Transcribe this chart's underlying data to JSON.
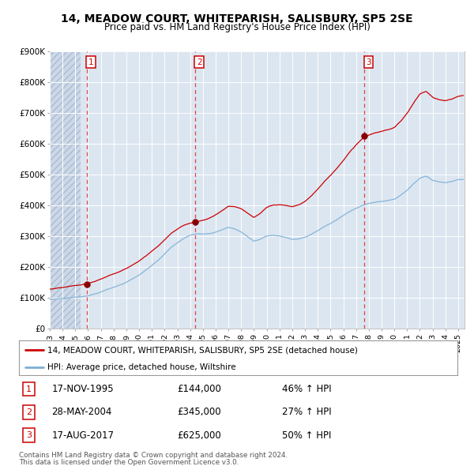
{
  "title_line1": "14, MEADOW COURT, WHITEPARISH, SALISBURY, SP5 2SE",
  "title_line2": "Price paid vs. HM Land Registry's House Price Index (HPI)",
  "background_color": "#dce6f1",
  "xlim_left": 1993.0,
  "xlim_right": 2025.5,
  "ylim_bottom": 0,
  "ylim_top": 900000,
  "yticks": [
    0,
    100000,
    200000,
    300000,
    400000,
    500000,
    600000,
    700000,
    800000,
    900000
  ],
  "ytick_labels": [
    "£0",
    "£100K",
    "£200K",
    "£300K",
    "£400K",
    "£500K",
    "£600K",
    "£700K",
    "£800K",
    "£900K"
  ],
  "xticks": [
    1993,
    1994,
    1995,
    1996,
    1997,
    1998,
    1999,
    2000,
    2001,
    2002,
    2003,
    2004,
    2005,
    2006,
    2007,
    2008,
    2009,
    2010,
    2011,
    2012,
    2013,
    2014,
    2015,
    2016,
    2017,
    2018,
    2019,
    2020,
    2021,
    2022,
    2023,
    2024,
    2025
  ],
  "red_line_color": "#cc0000",
  "blue_line_color": "#7bafd4",
  "sale_vline_color": "#dd4444",
  "sales": [
    {
      "label": "1",
      "year": 1995.88,
      "price": 144000,
      "hpi_pct": "46% ↑ HPI",
      "date_str": "17-NOV-1995"
    },
    {
      "label": "2",
      "year": 2004.37,
      "price": 345000,
      "hpi_pct": "27% ↑ HPI",
      "date_str": "28-MAY-2004"
    },
    {
      "label": "3",
      "year": 2017.62,
      "price": 625000,
      "hpi_pct": "50% ↑ HPI",
      "date_str": "17-AUG-2017"
    }
  ],
  "legend_line1": "14, MEADOW COURT, WHITEPARISH, SALISBURY, SP5 2SE (detached house)",
  "legend_line2": "HPI: Average price, detached house, Wiltshire",
  "footer_line1": "Contains HM Land Registry data © Crown copyright and database right 2024.",
  "footer_line2": "This data is licensed under the Open Government Licence v3.0.",
  "hatch_end_year": 1995.5,
  "hpi_control_points": {
    "1993.0": 95000,
    "1993.5": 96000,
    "1994.0": 98000,
    "1994.5": 100000,
    "1995.0": 102000,
    "1995.5": 104000,
    "1996.0": 108000,
    "1996.5": 113000,
    "1997.0": 120000,
    "1997.5": 128000,
    "1998.0": 135000,
    "1998.5": 143000,
    "1999.0": 152000,
    "1999.5": 163000,
    "2000.0": 175000,
    "2000.5": 190000,
    "2001.0": 205000,
    "2001.5": 222000,
    "2002.0": 242000,
    "2002.5": 263000,
    "2003.0": 278000,
    "2003.5": 292000,
    "2004.0": 302000,
    "2004.5": 308000,
    "2005.0": 308000,
    "2005.5": 310000,
    "2006.0": 315000,
    "2006.5": 322000,
    "2007.0": 330000,
    "2007.5": 325000,
    "2008.0": 315000,
    "2008.5": 300000,
    "2009.0": 285000,
    "2009.5": 292000,
    "2010.0": 303000,
    "2010.5": 305000,
    "2011.0": 303000,
    "2011.5": 298000,
    "2012.0": 292000,
    "2012.5": 293000,
    "2013.0": 298000,
    "2013.5": 308000,
    "2014.0": 320000,
    "2014.5": 333000,
    "2015.0": 343000,
    "2015.5": 355000,
    "2016.0": 368000,
    "2016.5": 382000,
    "2017.0": 393000,
    "2017.5": 402000,
    "2018.0": 408000,
    "2018.5": 412000,
    "2019.0": 415000,
    "2019.5": 418000,
    "2020.0": 422000,
    "2020.5": 435000,
    "2021.0": 452000,
    "2021.5": 473000,
    "2022.0": 492000,
    "2022.5": 498000,
    "2023.0": 485000,
    "2023.5": 480000,
    "2024.0": 478000,
    "2024.5": 482000,
    "2025.0": 488000,
    "2025.4": 490000
  }
}
